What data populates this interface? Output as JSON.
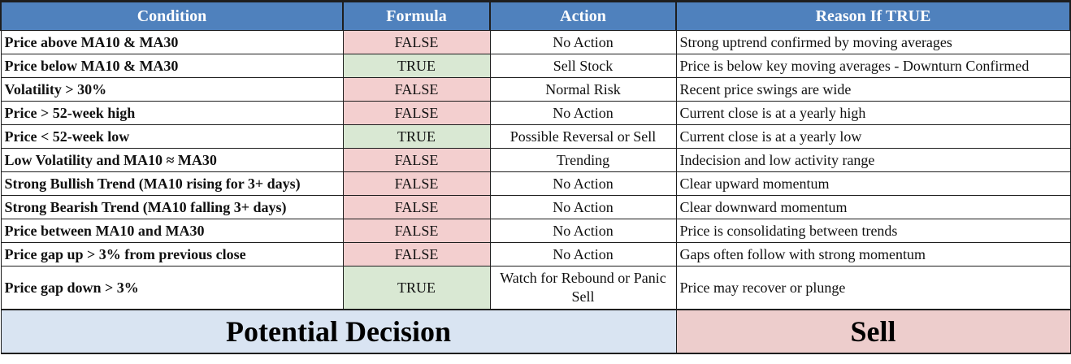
{
  "headers": {
    "condition": "Condition",
    "formula": "Formula",
    "action": "Action",
    "reason": "Reason If TRUE"
  },
  "rows": [
    {
      "condition": "Price above MA10 & MA30",
      "formula": "FALSE",
      "action": "No Action",
      "reason": "Strong uptrend confirmed by moving averages"
    },
    {
      "condition": "Price below MA10 & MA30",
      "formula": "TRUE",
      "action": "Sell Stock",
      "reason": "Price is below key moving averages - Downturn Confirmed"
    },
    {
      "condition": "Volatility > 30%",
      "formula": "FALSE",
      "action": "Normal Risk",
      "reason": "Recent price swings are wide"
    },
    {
      "condition": "Price > 52-week high",
      "formula": "FALSE",
      "action": "No Action",
      "reason": "Current close is at a yearly high"
    },
    {
      "condition": "Price < 52-week low",
      "formula": "TRUE",
      "action": "Possible Reversal or Sell",
      "reason": "Current close is at a yearly low"
    },
    {
      "condition": "Low Volatility and MA10 ≈ MA30",
      "formula": "FALSE",
      "action": "Trending",
      "reason": "Indecision and low activity range"
    },
    {
      "condition": "Strong Bullish Trend (MA10 rising for 3+ days)",
      "formula": "FALSE",
      "action": "No Action",
      "reason": "Clear upward momentum"
    },
    {
      "condition": "Strong Bearish Trend (MA10 falling 3+ days)",
      "formula": "FALSE",
      "action": "No Action",
      "reason": "Clear downward momentum"
    },
    {
      "condition": "Price between MA10 and MA30",
      "formula": "FALSE",
      "action": "No Action",
      "reason": "Price is consolidating between trends"
    },
    {
      "condition": "Price gap up > 3% from previous close",
      "formula": "FALSE",
      "action": "No Action",
      "reason": "Gaps often follow with strong momentum"
    },
    {
      "condition": "Price gap down > 3%",
      "formula": "TRUE",
      "action": "Watch for Rebound or Panic Sell",
      "reason": "Price may recover or plunge"
    }
  ],
  "decision": {
    "label": "Potential Decision",
    "value": "Sell"
  },
  "colors": {
    "header_bg": "#4f81bd",
    "false_bg": "#f3cfcf",
    "true_bg": "#d9e8d3",
    "decision_label_bg": "#d9e4f2",
    "decision_value_bg": "#edcdcc"
  }
}
